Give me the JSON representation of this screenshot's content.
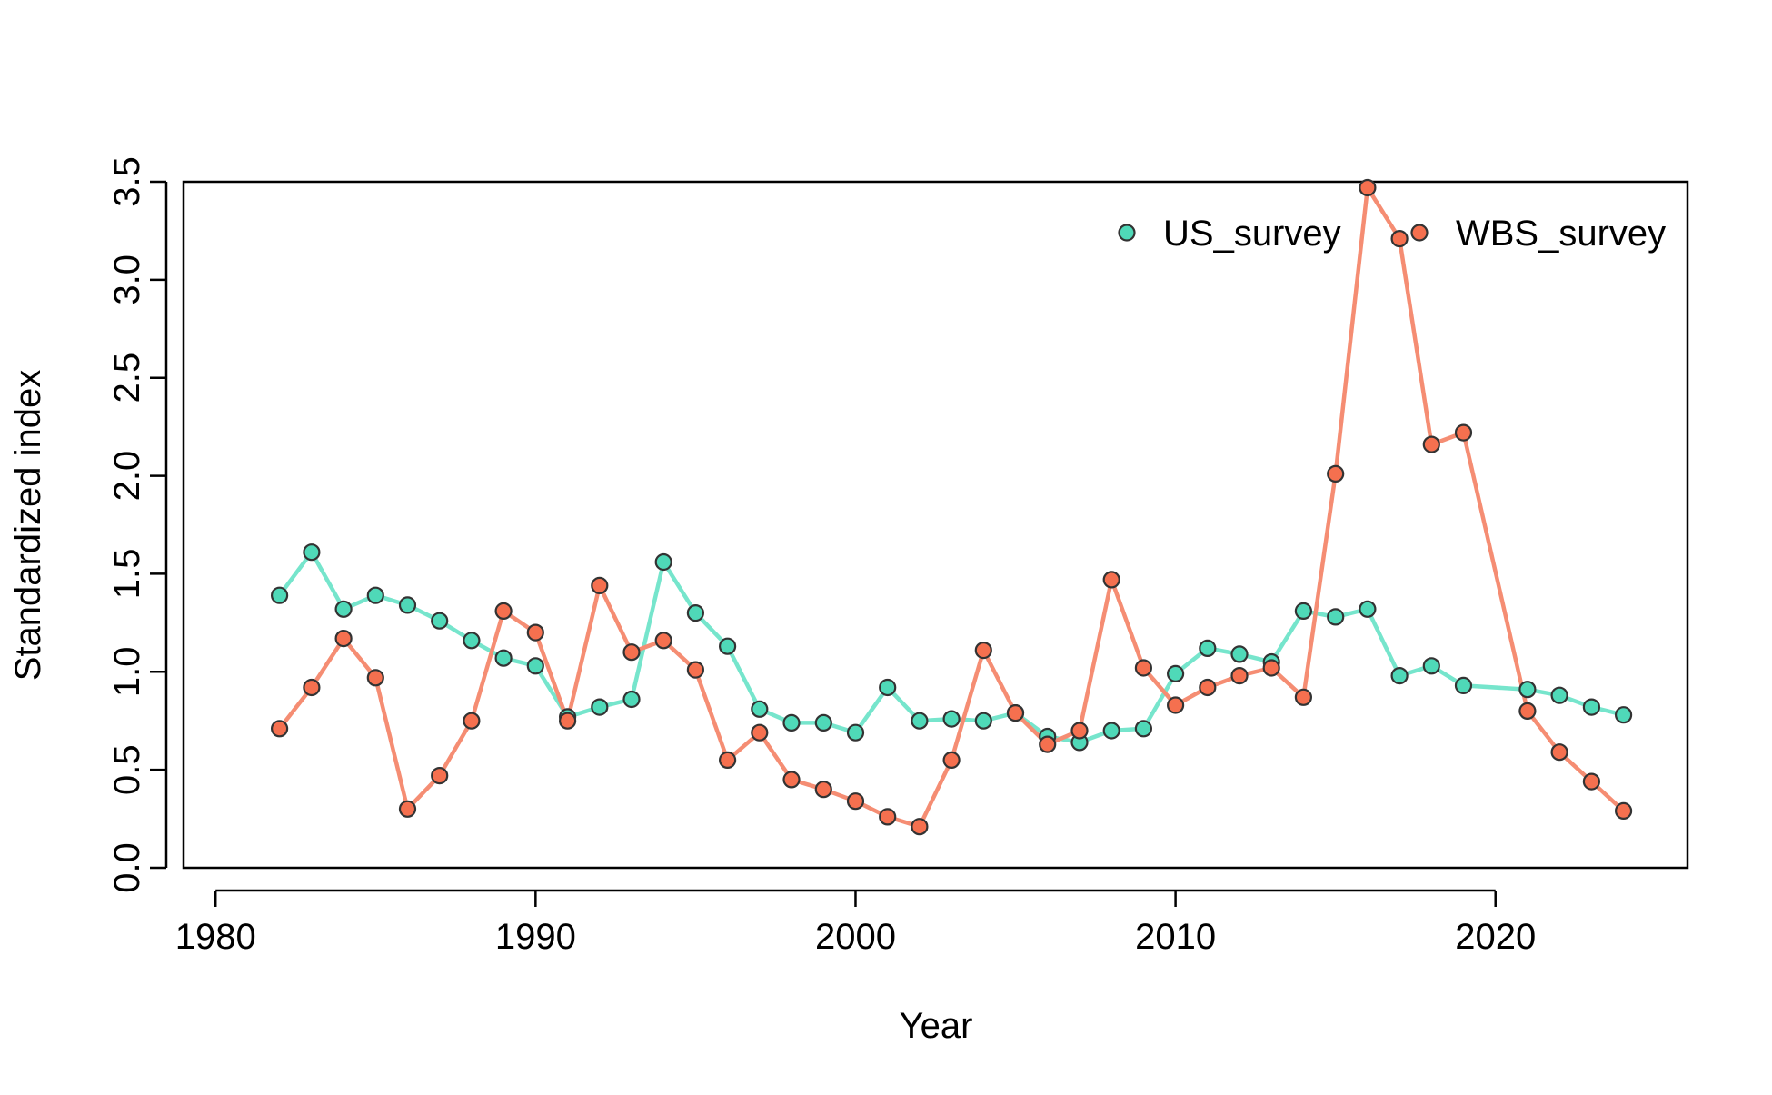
{
  "chart_data": {
    "type": "line",
    "title": "",
    "xlabel": "Year",
    "ylabel": "Standardized index",
    "xlim": [
      1979,
      2026
    ],
    "ylim": [
      0.0,
      3.5
    ],
    "x_ticks": [
      1980,
      1990,
      2000,
      2010,
      2020
    ],
    "x_tick_labels": [
      "1980",
      "1990",
      "2000",
      "2010",
      "2020"
    ],
    "y_ticks": [
      0.0,
      0.5,
      1.0,
      1.5,
      2.0,
      2.5,
      3.0,
      3.5
    ],
    "y_tick_labels": [
      "0.0",
      "0.5",
      "1.0",
      "1.5",
      "2.0",
      "2.5",
      "3.0",
      "3.5"
    ],
    "grid": false,
    "legend_position": "top-right",
    "series": [
      {
        "name": "US_survey",
        "color": "#76E5CC",
        "marker_color": "#4FD9B8",
        "x": [
          1982,
          1983,
          1984,
          1985,
          1986,
          1987,
          1988,
          1989,
          1990,
          1991,
          1992,
          1993,
          1994,
          1995,
          1996,
          1997,
          1998,
          1999,
          2000,
          2001,
          2002,
          2003,
          2004,
          2005,
          2006,
          2007,
          2008,
          2009,
          2010,
          2011,
          2012,
          2013,
          2014,
          2015,
          2016,
          2017,
          2018,
          2019,
          2021,
          2022,
          2023,
          2024
        ],
        "values": [
          1.39,
          1.61,
          1.32,
          1.39,
          1.34,
          1.26,
          1.16,
          1.07,
          1.03,
          0.77,
          0.82,
          0.86,
          1.56,
          1.3,
          1.13,
          0.81,
          0.74,
          0.74,
          0.69,
          0.92,
          0.75,
          0.76,
          0.75,
          0.79,
          0.67,
          0.64,
          0.7,
          0.71,
          0.99,
          1.12,
          1.09,
          1.05,
          1.31,
          1.28,
          1.32,
          0.98,
          1.03,
          0.93,
          0.91,
          0.88,
          0.82,
          0.78
        ]
      },
      {
        "name": "WBS_survey",
        "color": "#F58D73",
        "marker_color": "#F5704F",
        "x": [
          1982,
          1983,
          1984,
          1985,
          1986,
          1987,
          1988,
          1989,
          1990,
          1991,
          1992,
          1993,
          1994,
          1995,
          1996,
          1997,
          1998,
          1999,
          2000,
          2001,
          2002,
          2003,
          2004,
          2005,
          2006,
          2007,
          2008,
          2009,
          2010,
          2011,
          2012,
          2013,
          2014,
          2015,
          2016,
          2017,
          2018,
          2019,
          2021,
          2022,
          2023,
          2024
        ],
        "values": [
          0.71,
          0.92,
          1.17,
          0.97,
          0.3,
          0.47,
          0.75,
          1.31,
          1.2,
          0.75,
          1.44,
          1.1,
          1.16,
          1.01,
          0.55,
          0.69,
          0.45,
          0.4,
          0.34,
          0.26,
          0.21,
          0.55,
          1.11,
          0.79,
          0.63,
          0.7,
          1.47,
          1.02,
          0.83,
          0.92,
          0.98,
          1.02,
          0.87,
          2.01,
          3.47,
          3.21,
          2.16,
          2.22,
          0.8,
          0.59,
          0.44,
          0.29
        ]
      }
    ]
  }
}
